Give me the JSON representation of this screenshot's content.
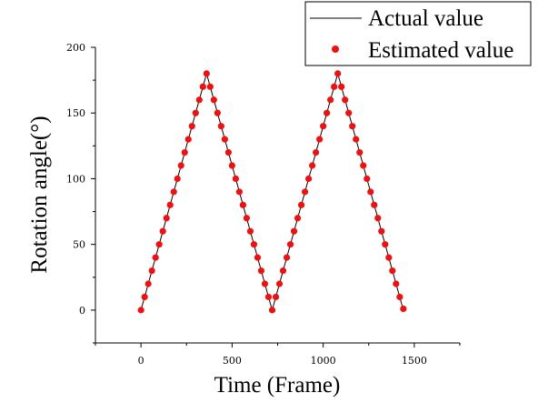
{
  "chart_data": {
    "type": "line",
    "xlabel": "Time (Frame)",
    "ylabel": "Rotation angle(°)",
    "xlim": [
      -250,
      1750
    ],
    "ylim": [
      -25,
      200
    ],
    "xticks": [
      0,
      500,
      1000,
      1500
    ],
    "yticks": [
      0,
      50,
      100,
      150,
      200
    ],
    "grid": false,
    "legend_position": "top-right",
    "colors": {
      "actual": "#000000",
      "estimated": "#ee1111"
    },
    "series": [
      {
        "name": "Actual value",
        "style": "line",
        "x": [
          0,
          360,
          720,
          1080,
          1440
        ],
        "y": [
          0,
          180,
          0,
          180,
          0
        ]
      },
      {
        "name": "Estimated value",
        "style": "markers",
        "x": [
          0,
          20,
          40,
          60,
          80,
          100,
          120,
          140,
          160,
          180,
          200,
          220,
          240,
          260,
          280,
          300,
          320,
          340,
          360,
          380,
          400,
          420,
          440,
          460,
          480,
          500,
          520,
          540,
          560,
          580,
          600,
          620,
          640,
          660,
          680,
          700,
          720,
          740,
          760,
          780,
          800,
          820,
          840,
          860,
          880,
          900,
          920,
          940,
          960,
          980,
          1000,
          1020,
          1040,
          1060,
          1080,
          1100,
          1120,
          1140,
          1160,
          1180,
          1200,
          1220,
          1240,
          1260,
          1280,
          1300,
          1320,
          1340,
          1360,
          1380,
          1400,
          1420,
          1440
        ],
        "y": [
          0,
          10,
          20,
          30,
          40,
          50,
          60,
          70,
          80,
          90,
          100,
          110,
          120,
          130,
          140,
          150,
          160,
          170,
          180,
          170,
          160,
          150,
          140,
          130,
          120,
          110,
          100,
          90,
          80,
          70,
          60,
          50,
          40,
          30,
          20,
          10,
          0,
          10,
          20,
          30,
          40,
          50,
          60,
          70,
          80,
          90,
          100,
          110,
          120,
          130,
          140,
          150,
          160,
          170,
          180,
          170,
          160,
          150,
          140,
          130,
          120,
          110,
          100,
          90,
          80,
          70,
          60,
          50,
          40,
          30,
          20,
          10,
          1
        ]
      }
    ]
  }
}
